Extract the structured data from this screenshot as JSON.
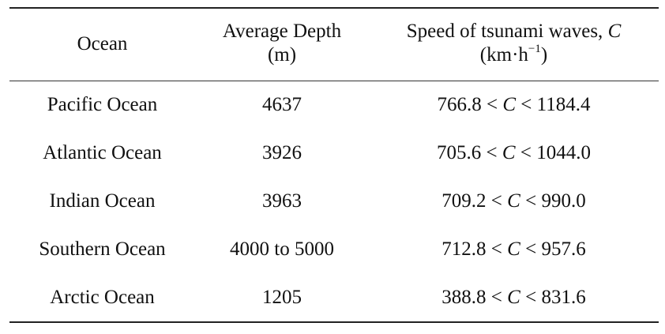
{
  "table": {
    "headers": {
      "ocean": "Ocean",
      "depth_line1": "Average Depth",
      "depth_line2": "(m)",
      "speed_line1_prefix": "Speed of tsunami waves, ",
      "speed_line1_var": "C",
      "speed_line2_unit": "(km·h",
      "speed_line2_exp": "−1",
      "speed_line2_close": ")"
    },
    "rows": [
      {
        "ocean": "Pacific Ocean",
        "depth": "4637",
        "speed_low": "766.8",
        "speed_var": "C",
        "speed_high": "1184.4"
      },
      {
        "ocean": "Atlantic Ocean",
        "depth": "3926",
        "speed_low": "705.6",
        "speed_var": "C",
        "speed_high": "1044.0"
      },
      {
        "ocean": "Indian Ocean",
        "depth": "3963",
        "speed_low": "709.2",
        "speed_var": "C",
        "speed_high": "990.0"
      },
      {
        "ocean": "Southern Ocean",
        "depth": "4000 to 5000",
        "speed_low": "712.8",
        "speed_var": "C",
        "speed_high": "957.6"
      },
      {
        "ocean": "Arctic Ocean",
        "depth": "1205",
        "speed_low": "388.8",
        "speed_var": "C",
        "speed_high": "831.6"
      }
    ]
  }
}
